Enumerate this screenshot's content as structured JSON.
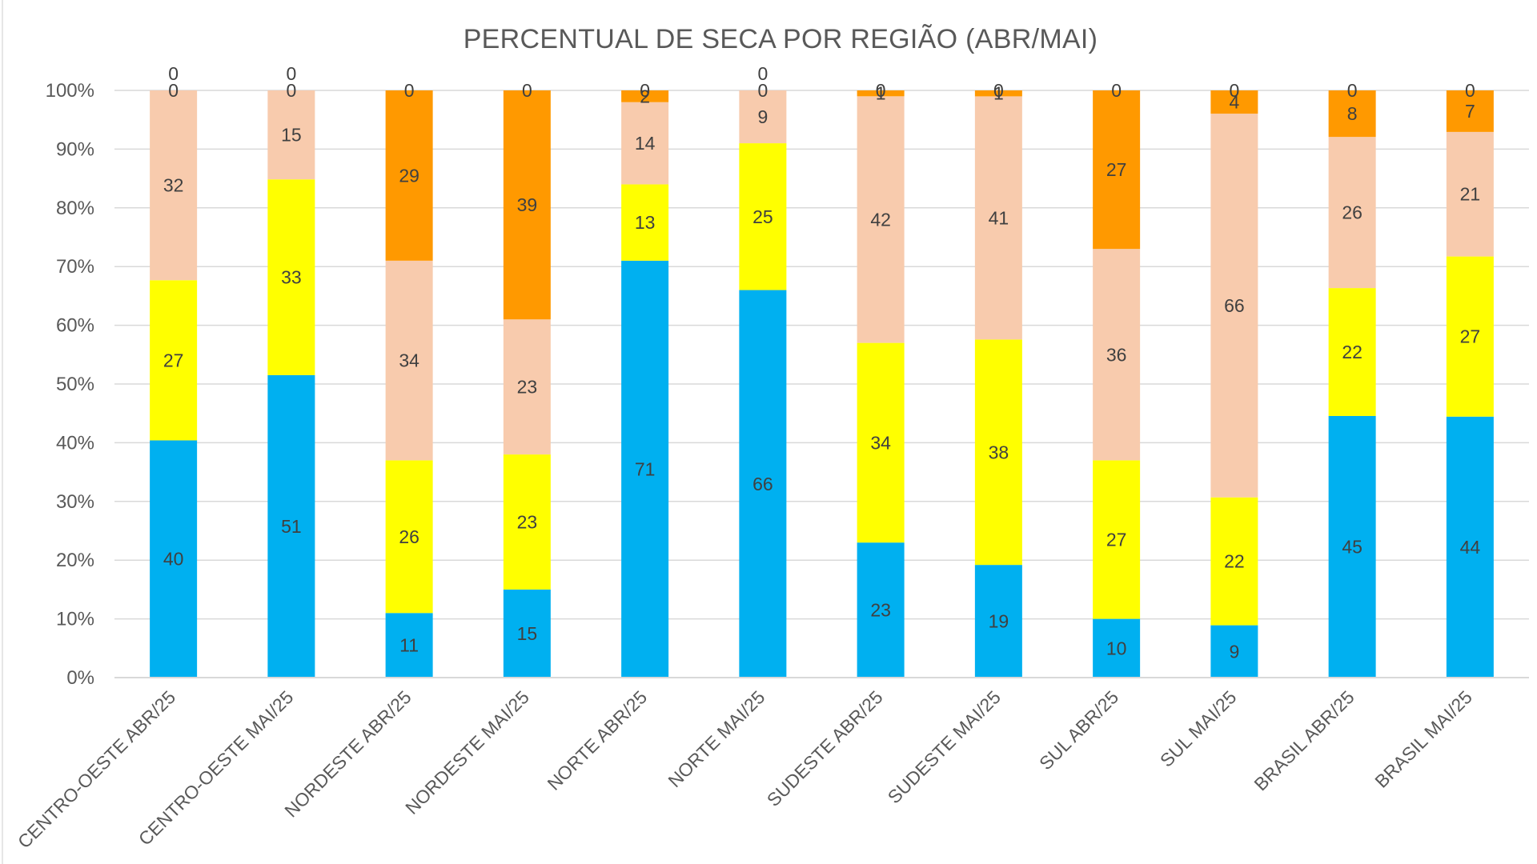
{
  "chart_data": {
    "type": "bar",
    "stacked": true,
    "percent": true,
    "title": "PERCENTUAL DE SECA POR REGIÃO (ABR/MAI)",
    "xlabel": "",
    "ylabel": "",
    "ylim": [
      0,
      100
    ],
    "y_ticks": [
      "0%",
      "10%",
      "20%",
      "30%",
      "40%",
      "50%",
      "60%",
      "70%",
      "80%",
      "90%",
      "100%"
    ],
    "grid": true,
    "legend": "none",
    "categories": [
      "CENTRO-OESTE ABR/25",
      "CENTRO-OESTE MAI/25",
      "NORDESTE ABR/25",
      "NORDESTE MAI/25",
      "NORTE ABR/25",
      "NORTE MAI/25",
      "SUDESTE ABR/25",
      "SUDESTE MAI/25",
      "SUL ABR/25",
      "SUL MAI/25",
      "BRASIL ABR/25",
      "BRASIL MAI/25"
    ],
    "series": [
      {
        "name": "",
        "color": "#00B0F0",
        "values": [
          40,
          51,
          11,
          15,
          71,
          66,
          23,
          19,
          10,
          9,
          45,
          44
        ]
      },
      {
        "name": "",
        "color": "#FFFF00",
        "values": [
          27,
          33,
          26,
          23,
          13,
          25,
          34,
          38,
          27,
          22,
          22,
          27
        ]
      },
      {
        "name": "",
        "color": "#F8CBAD",
        "values": [
          32,
          15,
          34,
          23,
          14,
          9,
          42,
          41,
          36,
          66,
          26,
          21
        ]
      },
      {
        "name": "",
        "color": "#FF9900",
        "values": [
          0,
          0,
          29,
          39,
          2,
          0,
          1,
          1,
          27,
          4,
          8,
          7
        ]
      },
      {
        "name": "",
        "color": "#C00000",
        "values": [
          0,
          0,
          0,
          0,
          0,
          0,
          0,
          0,
          0,
          0,
          0,
          0
        ]
      }
    ]
  }
}
